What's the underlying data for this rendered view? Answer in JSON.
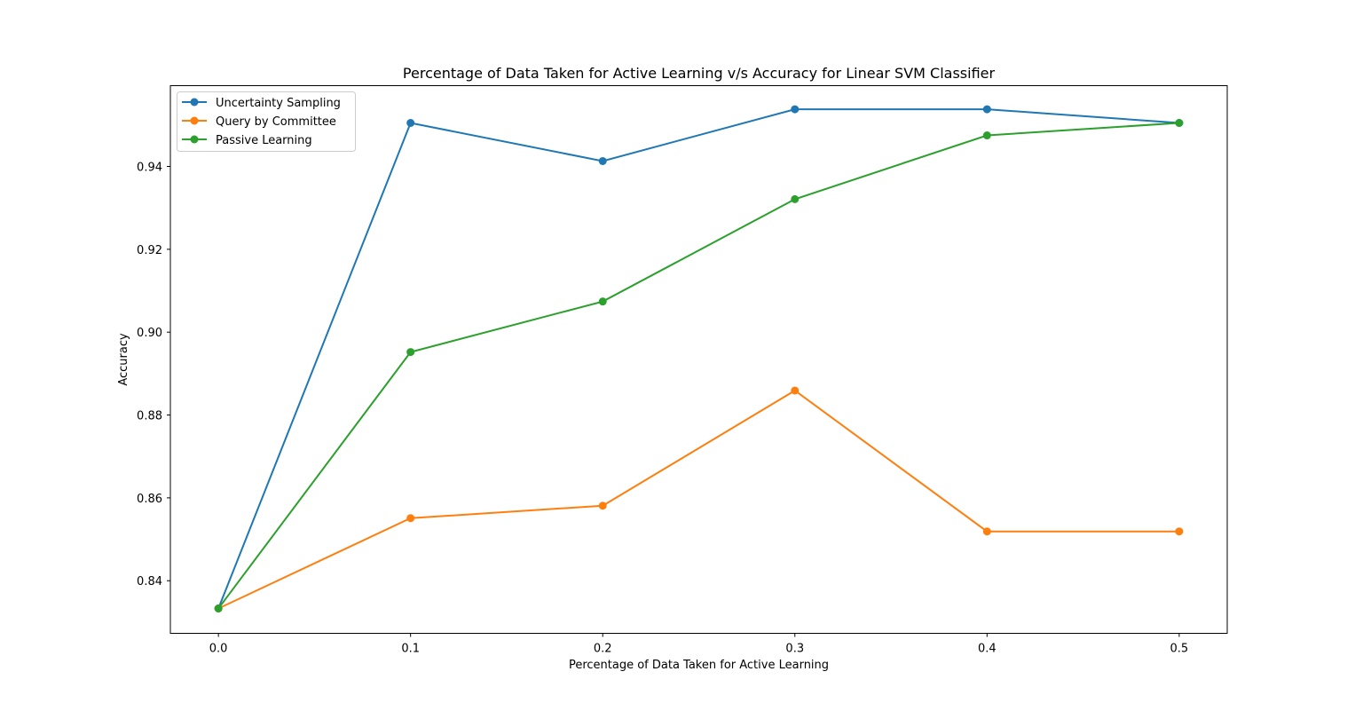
{
  "chart_data": {
    "type": "line",
    "title": "Percentage of Data Taken for Active Learning v/s Accuracy for Linear SVM Classifier",
    "xlabel": "Percentage of Data Taken for Active Learning",
    "ylabel": "Accuracy",
    "x": [
      0.0,
      0.1,
      0.2,
      0.3,
      0.4,
      0.5
    ],
    "xlim": [
      -0.025,
      0.525
    ],
    "ylim": [
      0.8273,
      0.9595
    ],
    "xticks": [
      0.0,
      0.1,
      0.2,
      0.3,
      0.4,
      0.5
    ],
    "xtick_labels": [
      "0.0",
      "0.1",
      "0.2",
      "0.3",
      "0.4",
      "0.5"
    ],
    "yticks": [
      0.84,
      0.86,
      0.88,
      0.9,
      0.92,
      0.94
    ],
    "ytick_labels": [
      "0.84",
      "0.86",
      "0.88",
      "0.90",
      "0.92",
      "0.94"
    ],
    "grid": false,
    "legend_position": "top-left",
    "series": [
      {
        "name": "Uncertainty Sampling",
        "color": "#1f77b4",
        "values": [
          0.8333,
          0.9505,
          0.9413,
          0.9538,
          0.9538,
          0.9505
        ]
      },
      {
        "name": "Query by Committee",
        "color": "#ff7f0e",
        "values": [
          0.8333,
          0.8551,
          0.8581,
          0.8859,
          0.8519,
          0.8519
        ]
      },
      {
        "name": "Passive Learning",
        "color": "#2ca02c",
        "values": [
          0.8333,
          0.8952,
          0.9074,
          0.9321,
          0.9475,
          0.9505
        ]
      }
    ]
  }
}
